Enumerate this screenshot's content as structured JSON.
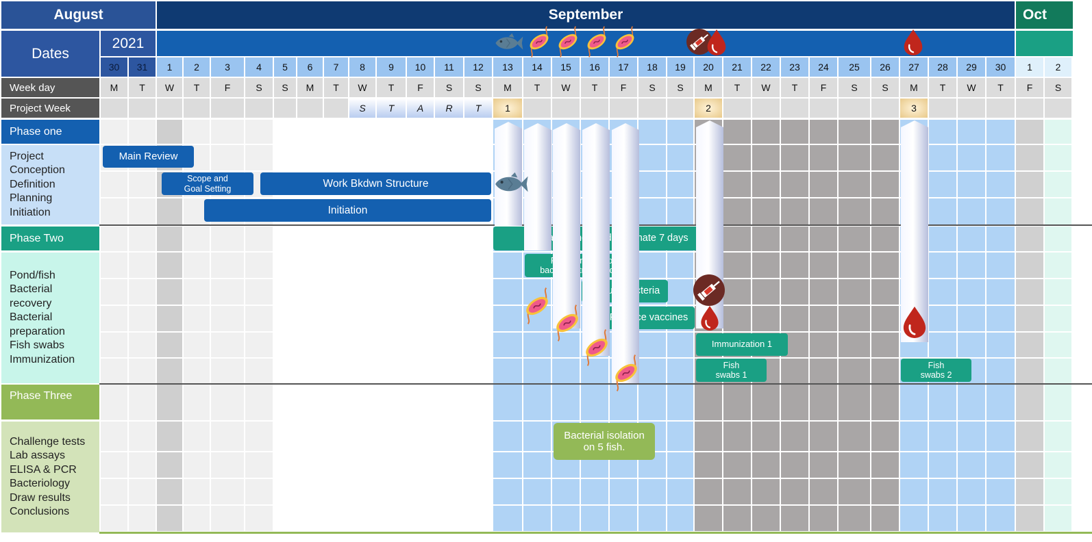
{
  "months": {
    "august": "August",
    "september": "September",
    "october": "Oct"
  },
  "year": "2021",
  "labels": {
    "dates": "Dates",
    "week_day": "Week day",
    "project_week": "Project Week"
  },
  "days": [
    "30",
    "31",
    "1",
    "2",
    "3",
    "4",
    "5",
    "6",
    "7",
    "8",
    "9",
    "10",
    "11",
    "12",
    "13",
    "14",
    "15",
    "16",
    "17",
    "18",
    "19",
    "20",
    "21",
    "22",
    "23",
    "24",
    "25",
    "26",
    "27",
    "28",
    "29",
    "30",
    "1",
    "2"
  ],
  "weekdays": [
    "M",
    "T",
    "W",
    "T",
    "F",
    "S",
    "S",
    "M",
    "T",
    "W",
    "T",
    "F",
    "S",
    "S",
    "M",
    "T",
    "W",
    "T",
    "F",
    "S",
    "S",
    "M",
    "T",
    "W",
    "T",
    "F",
    "S",
    "S",
    "M",
    "T",
    "W",
    "T",
    "F",
    "S"
  ],
  "start_letters": [
    "S",
    "T",
    "A",
    "R",
    "T"
  ],
  "project_weeks": [
    "1",
    "2",
    "3"
  ],
  "phases": [
    {
      "title": "Phase one",
      "items": [
        "Project",
        "Conception",
        "Definition",
        "Planning",
        "Initiation"
      ]
    },
    {
      "title": "Phase Two",
      "items": [
        "Pond/fish",
        "Bacterial",
        "recovery",
        "Bacterial",
        "preparation",
        "Fish swabs",
        "Immunization"
      ]
    },
    {
      "title": "Phase Three",
      "items": [
        "Challenge tests",
        "Lab assays",
        "ELISA & PCR",
        "Bacteriology",
        "Draw results",
        "Conclusions"
      ]
    }
  ],
  "tasks": {
    "main_review": "Main Review",
    "scope": "Scope and\nGoal Setting",
    "wbs": "Work Bkdwn Structure",
    "initiation": "Initiation",
    "prepare_ponds": "Prepare ponds and acclimate 7 days",
    "recover": "Recover the  two\nbacterial strains  1 day",
    "culture": "Culture bacteria",
    "produce": "Produce vaccines",
    "immunization1": "Immunization 1",
    "fish_swabs1": "Fish\nswabs 1",
    "fish_swabs2": "Fish\nswabs 2",
    "bacterial_isolation": "Bacterial isolation\non 5 fish."
  },
  "colors": {
    "phase1": "#1460b0",
    "phase2": "#1aa084",
    "phase3": "#93b957",
    "navy": "#0f3a72",
    "oct": "#127a5b"
  },
  "icons": [
    "fish-icon",
    "bacteria-icon",
    "syringe-icon",
    "blood-drop-icon"
  ]
}
